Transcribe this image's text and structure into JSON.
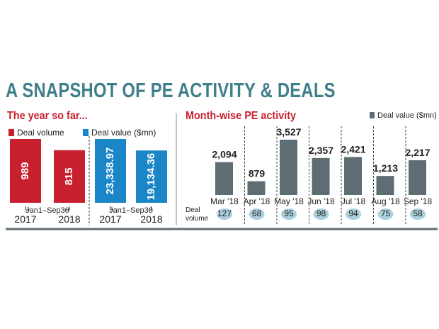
{
  "title": "A SNAPSHOT OF PE ACTIVITY &  DEALS",
  "colors": {
    "title": "#3e7f89",
    "subtitle": "#c8202f",
    "deal_volume": "#c8202f",
    "deal_value": "#1a86c8",
    "monthly_bar": "#5e6d74",
    "volume_bubble": "#a9d0dc",
    "axis": "#555555"
  },
  "left_panel": {
    "subtitle": "The year so far...",
    "legend_volume": "Deal volume",
    "legend_value": "Deal value ($mn)",
    "period_label": "Jan1–Sep30"
  },
  "right_panel": {
    "subtitle": "Month-wise PE activity",
    "legend_value": "Deal value ($mn)",
    "volume_caption": [
      "Deal",
      "volume"
    ]
  },
  "chart_data": [
    {
      "type": "bar",
      "categories": [
        "2017",
        "2018"
      ],
      "series": [
        {
          "name": "Deal volume",
          "values": [
            989,
            815
          ],
          "labels": [
            "989",
            "815"
          ]
        }
      ]
    },
    {
      "type": "bar",
      "categories": [
        "2017",
        "2018"
      ],
      "series": [
        {
          "name": "Deal value ($mn)",
          "values": [
            23338.97,
            19134.36
          ],
          "labels": [
            "23,338.97",
            "19,134.36"
          ]
        }
      ]
    },
    {
      "type": "bar",
      "categories": [
        "Mar '18",
        "Apr '18",
        "May '18",
        "Jun '18",
        "Jul '18",
        "Aug '18",
        "Sep '18"
      ],
      "series": [
        {
          "name": "Deal value ($mn)",
          "values": [
            2094,
            879,
            3527,
            2357,
            2421,
            1213,
            2217
          ],
          "labels": [
            "2,094",
            "879",
            "3,527",
            "2,357",
            "2,421",
            "1,213",
            "2,217"
          ]
        }
      ],
      "deal_volume": [
        127,
        68,
        95,
        98,
        94,
        75,
        58
      ]
    }
  ]
}
